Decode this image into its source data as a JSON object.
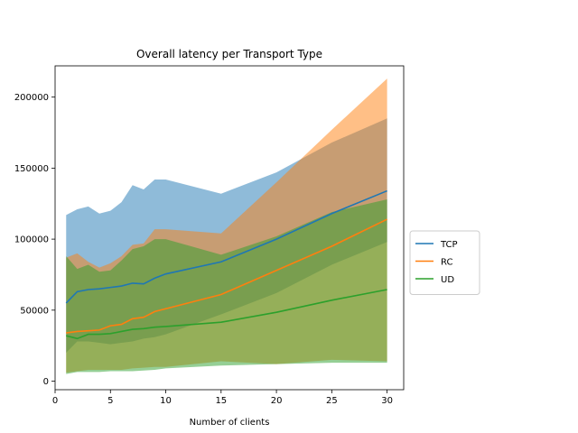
{
  "chart_data": {
    "type": "line",
    "title": "Overall latency per Transport Type",
    "xlabel": "Number of clients",
    "ylabel": "",
    "xlim": [
      0.0,
      31.5
    ],
    "ylim": [
      -6000,
      222000
    ],
    "xticks": [
      0,
      5,
      10,
      15,
      20,
      25,
      30
    ],
    "yticks": [
      0,
      50000,
      100000,
      150000,
      200000
    ],
    "ytick_labels": [
      "0",
      "50000",
      "100000",
      "150000",
      "200000"
    ],
    "grid": false,
    "legend_position": "center-right",
    "x": [
      1,
      2,
      3,
      4,
      5,
      6,
      7,
      8,
      9,
      10,
      15,
      20,
      25,
      30
    ],
    "series": [
      {
        "name": "TCP",
        "color": "#1f77b4",
        "band_color": "#1f77b4",
        "values": [
          55000,
          63000,
          64500,
          65000,
          66000,
          67000,
          69000,
          68500,
          72500,
          75500,
          84000,
          100000,
          118000,
          134000
        ],
        "upper": [
          117000,
          121000,
          123000,
          118000,
          120000,
          126000,
          138000,
          135000,
          142000,
          142000,
          132000,
          147000,
          168000,
          185000
        ],
        "lower": [
          20000,
          28000,
          28000,
          27000,
          26000,
          27000,
          28000,
          30000,
          31000,
          33000,
          47000,
          62000,
          82000,
          98000
        ]
      },
      {
        "name": "RC",
        "color": "#ff7f0e",
        "band_color": "#ff7f0e",
        "values": [
          34000,
          35000,
          35500,
          36000,
          39000,
          40000,
          44000,
          45000,
          49000,
          51000,
          61000,
          78000,
          95000,
          114000
        ],
        "upper": [
          87000,
          90000,
          84000,
          80000,
          83000,
          88000,
          96000,
          97000,
          107000,
          107000,
          104000,
          140000,
          177000,
          213000
        ],
        "lower": [
          6000,
          7000,
          8000,
          8000,
          8000,
          8000,
          9000,
          9500,
          10000,
          10000,
          14000,
          12000,
          15000,
          14000
        ]
      },
      {
        "name": "UD",
        "color": "#2ca02c",
        "band_color": "#2ca02c",
        "values": [
          32000,
          30000,
          33000,
          33000,
          33500,
          35000,
          36500,
          37000,
          38000,
          38500,
          41500,
          48500,
          57000,
          64500
        ],
        "upper": [
          88000,
          79000,
          82000,
          77000,
          78000,
          85000,
          93000,
          95000,
          100000,
          100000,
          89000,
          102000,
          119000,
          128000
        ],
        "lower": [
          5000,
          6500,
          6500,
          6500,
          7000,
          7000,
          7000,
          7500,
          8000,
          9000,
          11000,
          12000,
          13000,
          13000
        ]
      }
    ]
  }
}
